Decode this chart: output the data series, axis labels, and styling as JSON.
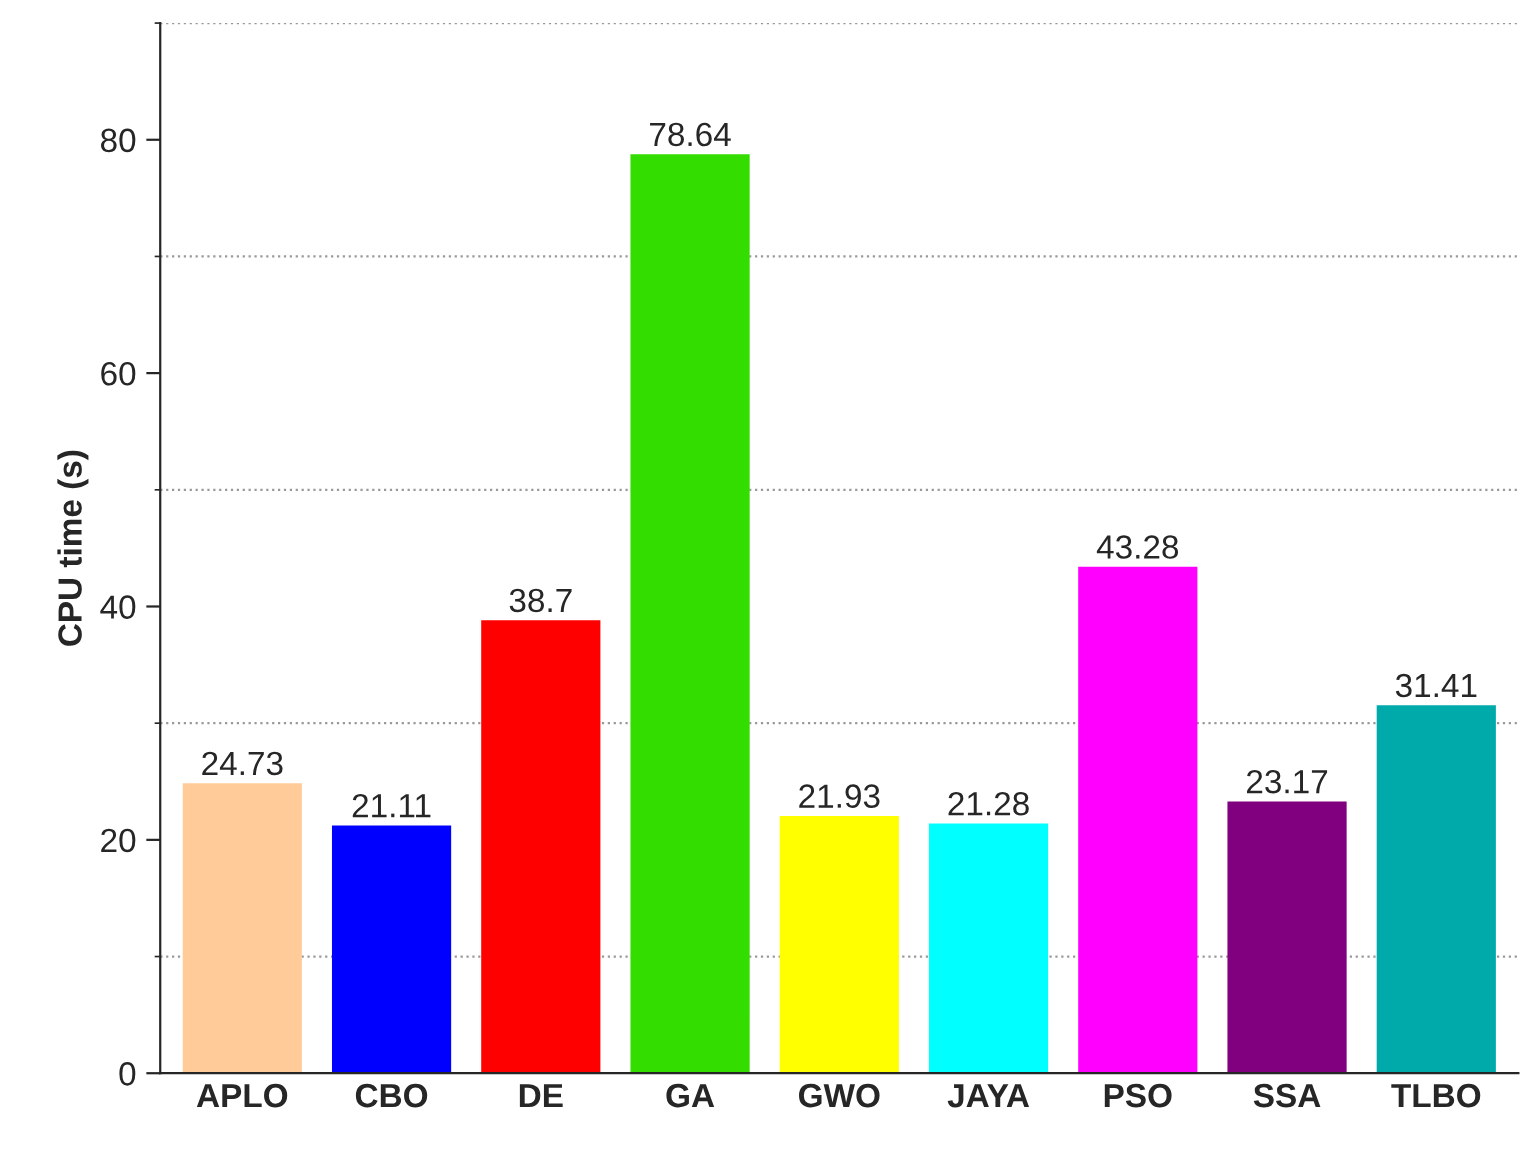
{
  "chart_data": {
    "type": "bar",
    "ylabel": "CPU time (s)",
    "categories": [
      "APLO",
      "CBO",
      "DE",
      "GA",
      "GWO",
      "JAYA",
      "PSO",
      "SSA",
      "TLBO"
    ],
    "values": [
      24.73,
      21.11,
      38.7,
      78.64,
      21.93,
      21.28,
      43.28,
      23.17,
      31.41
    ],
    "colors": [
      "#ffcc99",
      "#0000ff",
      "#ff0000",
      "#33dd00",
      "#ffff00",
      "#00ffff",
      "#ff00ff",
      "#800080",
      "#00aaaa"
    ],
    "ylim": [
      0,
      90
    ],
    "yticks": [
      0,
      20,
      40,
      60,
      80
    ],
    "grid": "y",
    "data_labels": true
  }
}
